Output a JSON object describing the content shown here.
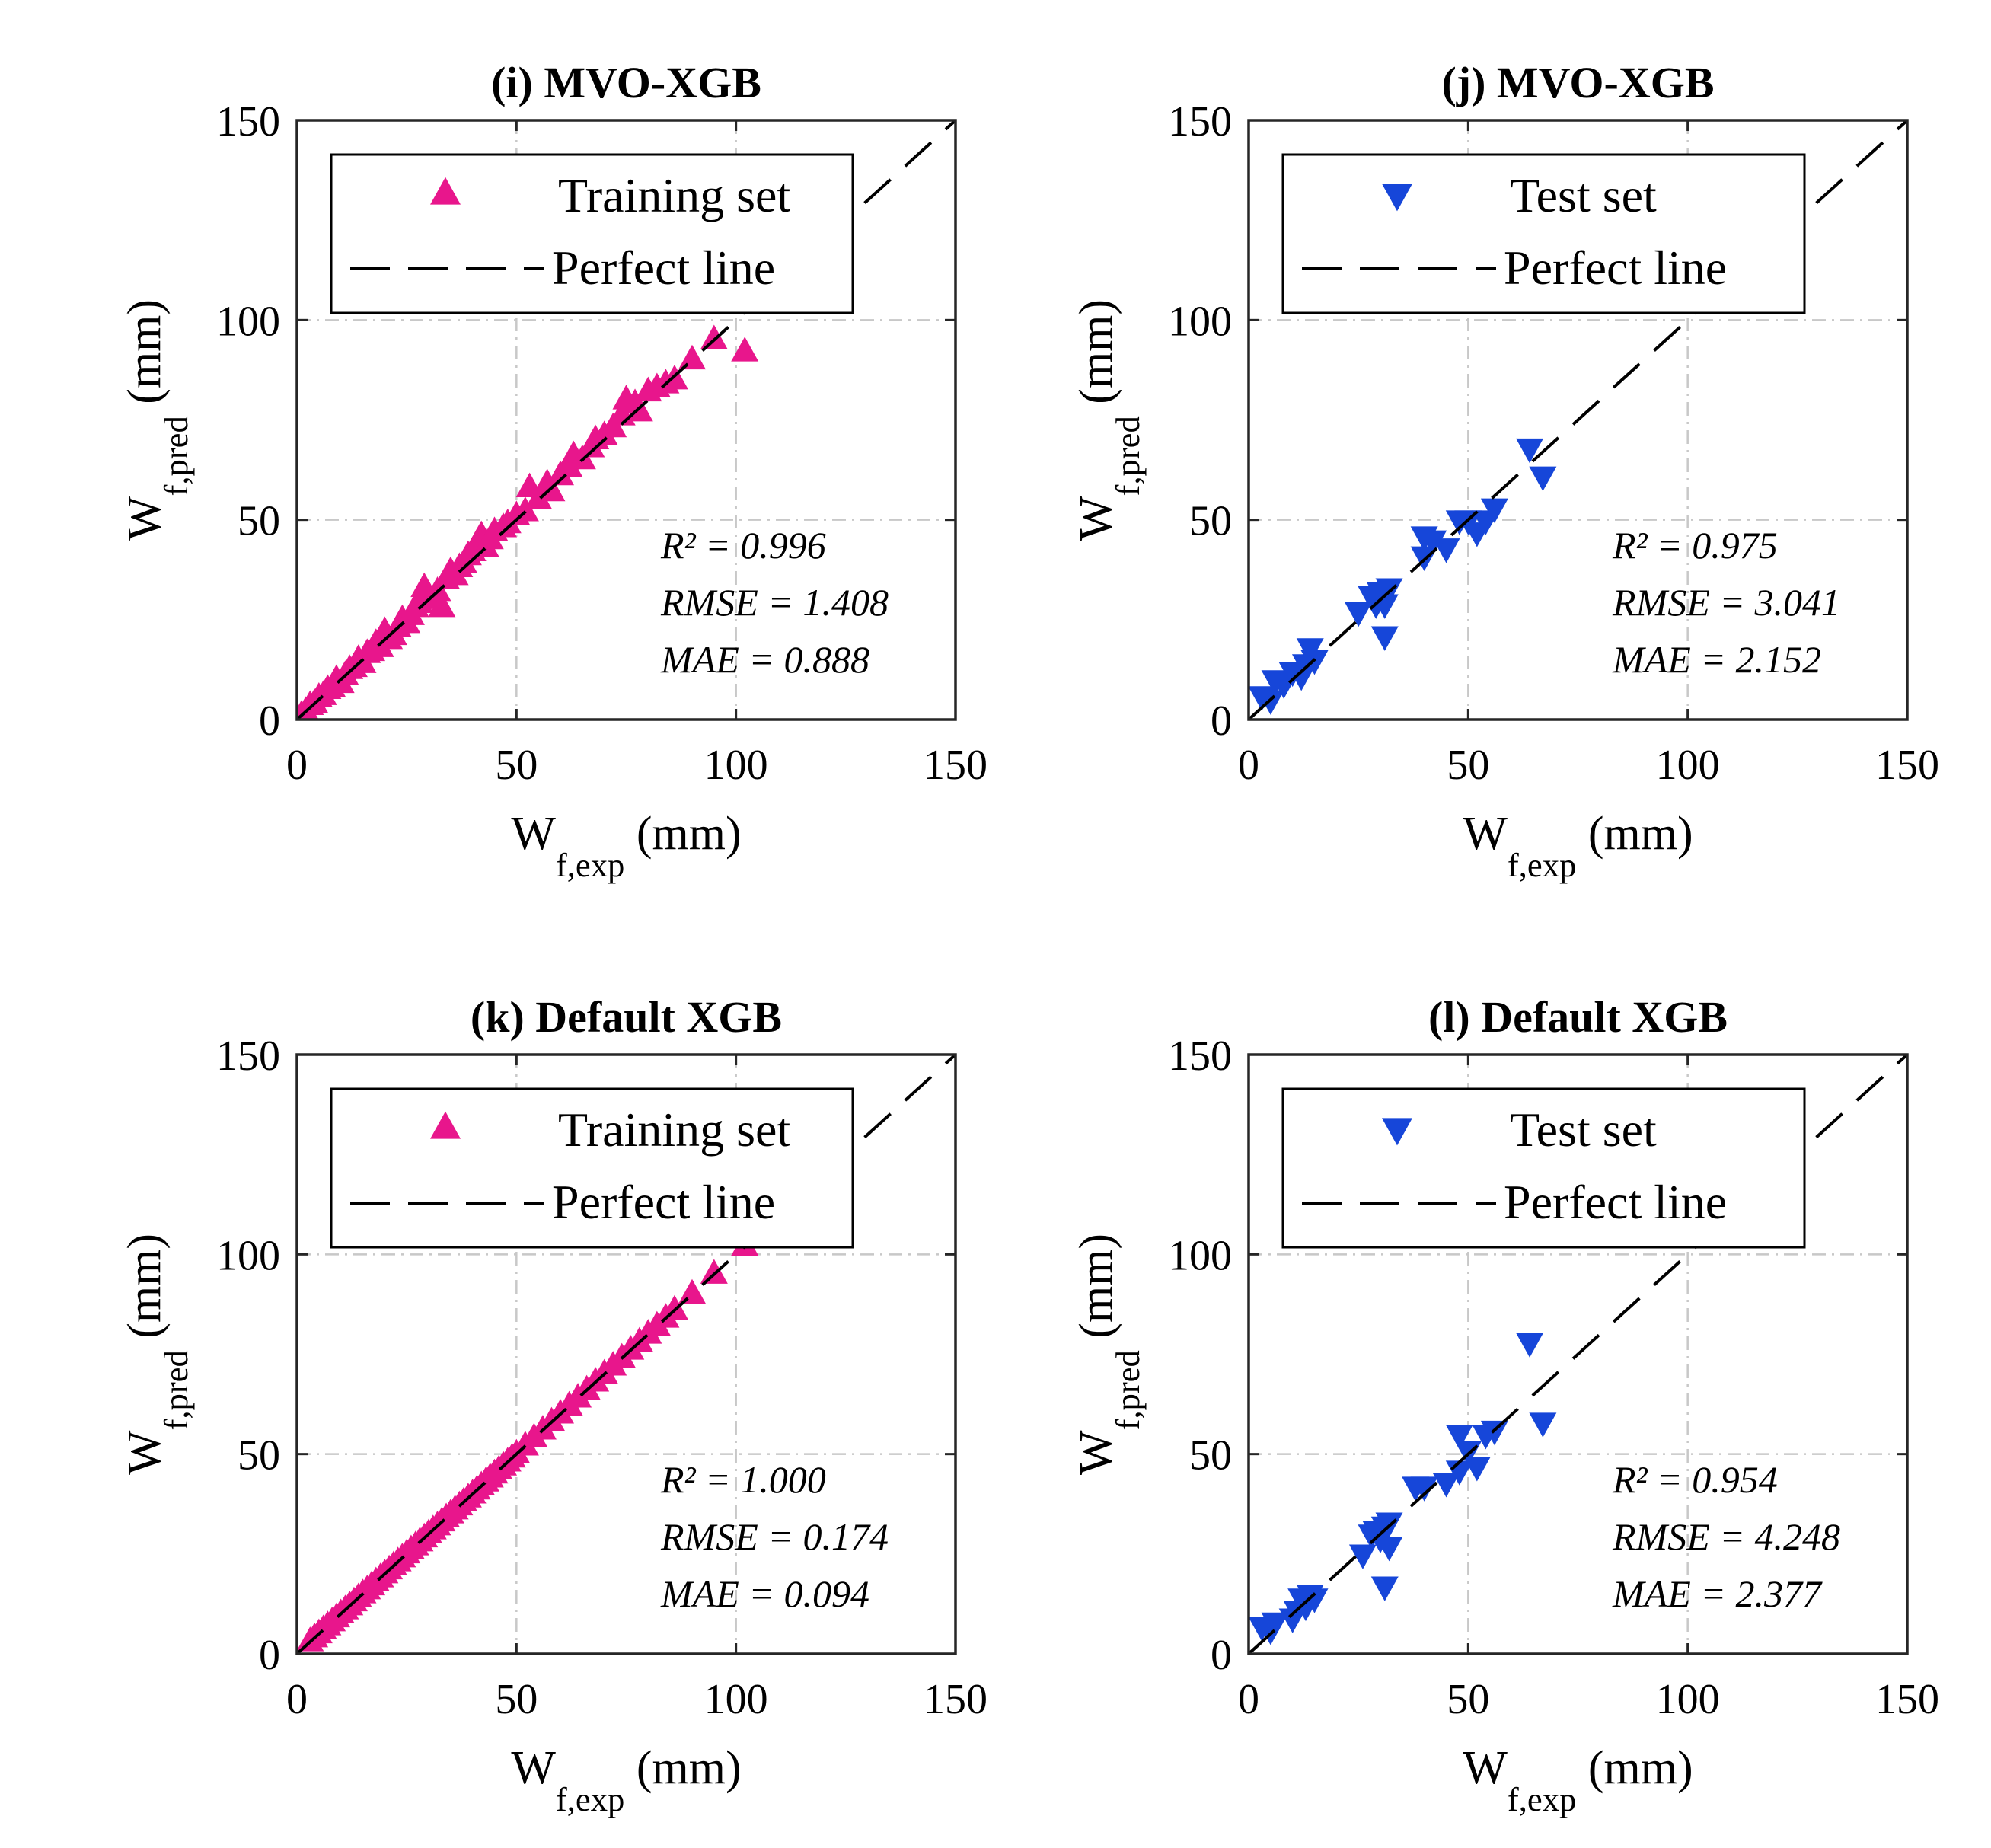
{
  "colors": {
    "training_marker": "#e8168c",
    "test_marker": "#1646d9",
    "grid": "#c8c8c8",
    "axis": "#262626"
  },
  "chart_data": [
    {
      "type": "scatter",
      "title": "(i) MVO-XGB",
      "xlabel": {
        "main": "W",
        "sub": "f,exp",
        "unit": "(mm)"
      },
      "ylabel": {
        "main": "W",
        "sub": "f,pred",
        "unit": "(mm)"
      },
      "xlim": [
        0,
        150
      ],
      "ylim": [
        0,
        150
      ],
      "xticks": [
        "0",
        "50",
        "100",
        "150"
      ],
      "yticks": [
        "0",
        "50",
        "100",
        "150"
      ],
      "grid": true,
      "marker": "triangle-up",
      "color": "#e8168c",
      "legend": {
        "position": "top-left",
        "series_label": "Training set",
        "line_label": "Perfect line"
      },
      "stats": {
        "r2": "R² = 0.996",
        "rmse": "RMSE = 1.408",
        "mae": "MAE = 0.888"
      },
      "points": [
        [
          1,
          1
        ],
        [
          2,
          2
        ],
        [
          3,
          3.5
        ],
        [
          4,
          4
        ],
        [
          5,
          5.5
        ],
        [
          6,
          6
        ],
        [
          7,
          7.5
        ],
        [
          8,
          8
        ],
        [
          9,
          10
        ],
        [
          10,
          9
        ],
        [
          11,
          11
        ],
        [
          12,
          12.5
        ],
        [
          13,
          13
        ],
        [
          14,
          15
        ],
        [
          15,
          14
        ],
        [
          16,
          16.5
        ],
        [
          17,
          17
        ],
        [
          18,
          19
        ],
        [
          19,
          18
        ],
        [
          20,
          22
        ],
        [
          21,
          20
        ],
        [
          22,
          21
        ],
        [
          23,
          23
        ],
        [
          24,
          25
        ],
        [
          25,
          24
        ],
        [
          26,
          26
        ],
        [
          27,
          28
        ],
        [
          28,
          29
        ],
        [
          29,
          33
        ],
        [
          30,
          31
        ],
        [
          31,
          30
        ],
        [
          32,
          32
        ],
        [
          33,
          28
        ],
        [
          34,
          35
        ],
        [
          35,
          37
        ],
        [
          36,
          36
        ],
        [
          37,
          38
        ],
        [
          38,
          39
        ],
        [
          39,
          41
        ],
        [
          40,
          42
        ],
        [
          41,
          44
        ],
        [
          42,
          46
        ],
        [
          43,
          43
        ],
        [
          44,
          45
        ],
        [
          45,
          47
        ],
        [
          47,
          48
        ],
        [
          48,
          49
        ],
        [
          50,
          51
        ],
        [
          52,
          52
        ],
        [
          53,
          58
        ],
        [
          55,
          55
        ],
        [
          57,
          59
        ],
        [
          58,
          57
        ],
        [
          60,
          61
        ],
        [
          62,
          63
        ],
        [
          63,
          66
        ],
        [
          65,
          65
        ],
        [
          67,
          68
        ],
        [
          68,
          70
        ],
        [
          70,
          71
        ],
        [
          72,
          73
        ],
        [
          74,
          76
        ],
        [
          75,
          80
        ],
        [
          77,
          79
        ],
        [
          78,
          77
        ],
        [
          80,
          82
        ],
        [
          82,
          83
        ],
        [
          84,
          84
        ],
        [
          86,
          85
        ],
        [
          90,
          90
        ],
        [
          95,
          95
        ],
        [
          102,
          92
        ]
      ]
    },
    {
      "type": "scatter",
      "title": "(j) MVO-XGB",
      "xlabel": {
        "main": "W",
        "sub": "f,exp",
        "unit": "(mm)"
      },
      "ylabel": {
        "main": "W",
        "sub": "f,pred",
        "unit": "(mm)"
      },
      "xlim": [
        0,
        150
      ],
      "ylim": [
        0,
        150
      ],
      "xticks": [
        "0",
        "50",
        "100",
        "150"
      ],
      "yticks": [
        "0",
        "50",
        "100",
        "150"
      ],
      "grid": true,
      "marker": "triangle-down",
      "color": "#1646d9",
      "legend": {
        "position": "top-left",
        "series_label": "Test set",
        "line_label": "Perfect line"
      },
      "stats": {
        "r2": "R² = 0.975",
        "rmse": "RMSE = 3.041",
        "mae": "MAE = 2.152"
      },
      "points": [
        [
          3,
          6
        ],
        [
          5,
          5
        ],
        [
          6,
          10
        ],
        [
          8,
          9
        ],
        [
          10,
          12
        ],
        [
          12,
          11
        ],
        [
          13,
          14
        ],
        [
          14,
          18
        ],
        [
          15,
          15
        ],
        [
          25,
          27
        ],
        [
          28,
          31
        ],
        [
          29,
          29
        ],
        [
          30,
          32
        ],
        [
          31,
          21
        ],
        [
          32,
          33
        ],
        [
          31,
          29
        ],
        [
          40,
          41
        ],
        [
          40,
          46
        ],
        [
          42,
          45
        ],
        [
          45,
          43
        ],
        [
          48,
          50
        ],
        [
          50,
          50
        ],
        [
          52,
          47
        ],
        [
          54,
          50
        ],
        [
          56,
          53
        ],
        [
          64,
          68
        ],
        [
          67,
          61
        ]
      ]
    },
    {
      "type": "scatter",
      "title": "(k) Default XGB",
      "xlabel": {
        "main": "W",
        "sub": "f,exp",
        "unit": "(mm)"
      },
      "ylabel": {
        "main": "W",
        "sub": "f,pred",
        "unit": "(mm)"
      },
      "xlim": [
        0,
        150
      ],
      "ylim": [
        0,
        150
      ],
      "xticks": [
        "0",
        "50",
        "100",
        "150"
      ],
      "yticks": [
        "0",
        "50",
        "100",
        "150"
      ],
      "grid": true,
      "marker": "triangle-up",
      "color": "#e8168c",
      "legend": {
        "position": "top-left",
        "series_label": "Training set",
        "line_label": "Perfect line"
      },
      "stats": {
        "r2": "R² = 1.000",
        "rmse": "RMSE = 0.174",
        "mae": "MAE = 0.094"
      },
      "points": [
        [
          3,
          3
        ],
        [
          4,
          4
        ],
        [
          5,
          5
        ],
        [
          6,
          6
        ],
        [
          7,
          7
        ],
        [
          8,
          8
        ],
        [
          9,
          9
        ],
        [
          10,
          10
        ],
        [
          11,
          11
        ],
        [
          12,
          12
        ],
        [
          13,
          13
        ],
        [
          14,
          14
        ],
        [
          15,
          15
        ],
        [
          16,
          16
        ],
        [
          17,
          17
        ],
        [
          18,
          18
        ],
        [
          19,
          19
        ],
        [
          20,
          20
        ],
        [
          21,
          21
        ],
        [
          22,
          22
        ],
        [
          23,
          23
        ],
        [
          24,
          24
        ],
        [
          25,
          25
        ],
        [
          26,
          26
        ],
        [
          27,
          27
        ],
        [
          28,
          28
        ],
        [
          29,
          29
        ],
        [
          30,
          30
        ],
        [
          31,
          31
        ],
        [
          32,
          32
        ],
        [
          33,
          33
        ],
        [
          34,
          34
        ],
        [
          35,
          35
        ],
        [
          36,
          36
        ],
        [
          37,
          37
        ],
        [
          38,
          38
        ],
        [
          39,
          39
        ],
        [
          40,
          40
        ],
        [
          41,
          41
        ],
        [
          42,
          42
        ],
        [
          43,
          43
        ],
        [
          44,
          44
        ],
        [
          45,
          45
        ],
        [
          46,
          46
        ],
        [
          47,
          47
        ],
        [
          48,
          48
        ],
        [
          49,
          49
        ],
        [
          50,
          50
        ],
        [
          52,
          52
        ],
        [
          54,
          54
        ],
        [
          56,
          56
        ],
        [
          58,
          58
        ],
        [
          60,
          60
        ],
        [
          62,
          62
        ],
        [
          64,
          64
        ],
        [
          66,
          66
        ],
        [
          68,
          68
        ],
        [
          70,
          70
        ],
        [
          72,
          72
        ],
        [
          74,
          74
        ],
        [
          76,
          76
        ],
        [
          78,
          78
        ],
        [
          80,
          80
        ],
        [
          82,
          82
        ],
        [
          84,
          84
        ],
        [
          86,
          86
        ],
        [
          90,
          90
        ],
        [
          95,
          95
        ],
        [
          102,
          102
        ]
      ]
    },
    {
      "type": "scatter",
      "title": "(l) Default XGB",
      "xlabel": {
        "main": "W",
        "sub": "f,exp",
        "unit": "(mm)"
      },
      "ylabel": {
        "main": "W",
        "sub": "f,pred",
        "unit": "(mm)"
      },
      "xlim": [
        0,
        150
      ],
      "ylim": [
        0,
        150
      ],
      "xticks": [
        "0",
        "50",
        "100",
        "150"
      ],
      "yticks": [
        "0",
        "50",
        "100",
        "150"
      ],
      "grid": true,
      "marker": "triangle-down",
      "color": "#1646d9",
      "legend": {
        "position": "top-left",
        "series_label": "Test set",
        "line_label": "Perfect line"
      },
      "stats": {
        "r2": "R² = 0.954",
        "rmse": "RMSE = 4.248",
        "mae": "MAE = 2.377"
      },
      "points": [
        [
          3,
          7
        ],
        [
          5,
          6
        ],
        [
          6,
          8
        ],
        [
          10,
          9
        ],
        [
          11,
          11
        ],
        [
          12,
          14
        ],
        [
          13,
          12
        ],
        [
          14,
          15
        ],
        [
          15,
          14
        ],
        [
          26,
          25
        ],
        [
          28,
          30
        ],
        [
          29,
          31
        ],
        [
          30,
          29
        ],
        [
          31,
          32
        ],
        [
          32,
          33
        ],
        [
          32,
          27
        ],
        [
          31,
          17
        ],
        [
          38,
          42
        ],
        [
          40,
          42
        ],
        [
          45,
          43
        ],
        [
          48,
          46
        ],
        [
          48,
          55
        ],
        [
          50,
          51
        ],
        [
          52,
          47
        ],
        [
          54,
          55
        ],
        [
          56,
          56
        ],
        [
          64,
          78
        ],
        [
          67,
          58
        ]
      ]
    }
  ]
}
